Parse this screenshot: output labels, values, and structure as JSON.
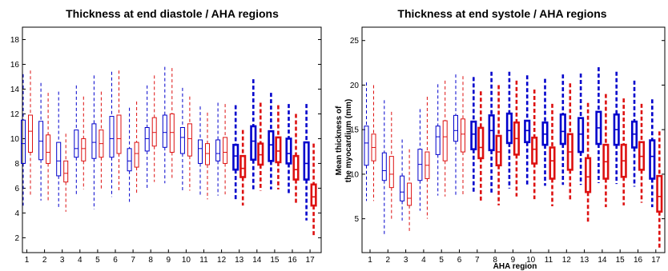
{
  "chart_data": [
    {
      "type": "box",
      "title": "Thickness at end diastole / AHA regions",
      "xlabel": "",
      "ylabel": "",
      "ylim": [
        0.8,
        19
      ],
      "yticks": [
        2,
        4,
        6,
        8,
        10,
        12,
        14,
        16,
        18
      ],
      "categories": [
        "1",
        "2",
        "3",
        "4",
        "5",
        "6",
        "7",
        "8",
        "9",
        "10",
        "11",
        "12",
        "13",
        "14",
        "15",
        "16",
        "17"
      ],
      "series_colors": {
        "a": "#0000cc",
        "b": "#dd1111"
      },
      "highlight_from_category": 13,
      "series": [
        {
          "boxes": [
            {
              "min": 4.6,
              "q1": 8.0,
              "med": 9.6,
              "q3": 11.5,
              "max": 15.2
            },
            {
              "min": 5.0,
              "q1": 8.3,
              "med": 9.8,
              "q3": 11.4,
              "max": 14.5
            },
            {
              "min": 4.3,
              "q1": 7.0,
              "med": 8.2,
              "q3": 9.7,
              "max": 13.8
            },
            {
              "min": 5.5,
              "q1": 8.5,
              "med": 9.2,
              "q3": 10.7,
              "max": 14.3
            },
            {
              "min": 4.3,
              "q1": 8.4,
              "med": 9.7,
              "q3": 11.2,
              "max": 15.1
            },
            {
              "min": 5.3,
              "q1": 8.5,
              "med": 10.0,
              "q3": 11.8,
              "max": 15.4
            },
            {
              "min": 4.9,
              "q1": 7.4,
              "med": 8.2,
              "q3": 9.2,
              "max": 12.5
            },
            {
              "min": 6.0,
              "q1": 9.0,
              "med": 10.0,
              "q3": 10.9,
              "max": 14.3
            },
            {
              "min": 6.4,
              "q1": 9.3,
              "med": 10.5,
              "q3": 11.9,
              "max": 15.8
            },
            {
              "min": 5.8,
              "q1": 8.8,
              "med": 10.1,
              "q3": 10.9,
              "max": 14.1
            },
            {
              "min": 5.3,
              "q1": 8.0,
              "med": 9.2,
              "q3": 9.9,
              "max": 12.6
            },
            {
              "min": 5.4,
              "q1": 8.2,
              "med": 8.8,
              "q3": 9.9,
              "max": 12.9
            },
            {
              "min": 5.0,
              "q1": 7.5,
              "med": 8.6,
              "q3": 9.5,
              "max": 12.7
            },
            {
              "min": 5.8,
              "q1": 8.3,
              "med": 9.8,
              "q3": 11.0,
              "max": 14.8
            },
            {
              "min": 5.9,
              "q1": 8.2,
              "med": 9.5,
              "q3": 10.6,
              "max": 13.7
            },
            {
              "min": 5.6,
              "q1": 8.0,
              "med": 8.8,
              "q3": 10.0,
              "max": 12.8
            },
            {
              "min": 3.4,
              "q1": 6.7,
              "med": 8.0,
              "q3": 9.7,
              "max": 12.8
            }
          ]
        },
        {
          "boxes": [
            {
              "min": 5.3,
              "q1": 8.9,
              "med": 10.6,
              "q3": 11.9,
              "max": 15.5
            },
            {
              "min": 5.0,
              "q1": 8.0,
              "med": 8.9,
              "q3": 10.3,
              "max": 13.7
            },
            {
              "min": 4.1,
              "q1": 6.5,
              "med": 7.2,
              "q3": 8.2,
              "max": 10.4
            },
            {
              "min": 5.9,
              "q1": 8.2,
              "med": 9.2,
              "q3": 10.0,
              "max": 13.4
            },
            {
              "min": 5.8,
              "q1": 8.5,
              "med": 9.6,
              "q3": 10.7,
              "max": 13.8
            },
            {
              "min": 5.8,
              "q1": 8.8,
              "med": 10.0,
              "q3": 11.9,
              "max": 15.5
            },
            {
              "min": 5.5,
              "q1": 7.7,
              "med": 8.8,
              "q3": 9.7,
              "max": 13.0
            },
            {
              "min": 6.5,
              "q1": 9.4,
              "med": 10.5,
              "q3": 11.7,
              "max": 15.1
            },
            {
              "min": 6.8,
              "q1": 8.9,
              "med": 10.5,
              "q3": 12.0,
              "max": 15.7
            },
            {
              "min": 5.8,
              "q1": 8.6,
              "med": 10.0,
              "q3": 11.2,
              "max": 13.4
            },
            {
              "min": 5.1,
              "q1": 7.9,
              "med": 8.8,
              "q3": 9.6,
              "max": 12.1
            },
            {
              "min": 5.5,
              "q1": 8.0,
              "med": 8.9,
              "q3": 10.1,
              "max": 12.8
            },
            {
              "min": 4.6,
              "q1": 6.9,
              "med": 7.6,
              "q3": 8.6,
              "max": 10.7
            },
            {
              "min": 5.8,
              "q1": 7.9,
              "med": 8.7,
              "q3": 9.6,
              "max": 12.9
            },
            {
              "min": 5.9,
              "q1": 8.1,
              "med": 9.0,
              "q3": 10.1,
              "max": 12.7
            },
            {
              "min": 4.7,
              "q1": 6.7,
              "med": 7.5,
              "q3": 8.6,
              "max": 12.0
            },
            {
              "min": 2.1,
              "q1": 4.6,
              "med": 5.3,
              "q3": 6.3,
              "max": 9.6
            }
          ]
        }
      ]
    },
    {
      "type": "box",
      "title": "Thickness at end systole / AHA regions",
      "xlabel": "AHA region",
      "ylabel": "Mean thickness of the myocardium (mm)",
      "ylabel_lines": [
        "Mean thickness of",
        "the myocardium (mm)"
      ],
      "ylim": [
        1.2,
        26.5
      ],
      "yticks": [
        5,
        10,
        15,
        20,
        25
      ],
      "categories": [
        "1",
        "2",
        "3",
        "4",
        "5",
        "6",
        "7",
        "8",
        "9",
        "10",
        "11",
        "12",
        "13",
        "14",
        "15",
        "16",
        "17"
      ],
      "series_colors": {
        "a": "#0000cc",
        "b": "#dd1111"
      },
      "highlight_from_category": 7,
      "series": [
        {
          "boxes": [
            {
              "min": 7.0,
              "q1": 11.0,
              "med": 13.5,
              "q3": 15.4,
              "max": 20.3
            },
            {
              "min": 3.2,
              "q1": 9.3,
              "med": 10.4,
              "q3": 12.4,
              "max": 18.3
            },
            {
              "min": 4.8,
              "q1": 7.0,
              "med": 8.0,
              "q3": 9.8,
              "max": 13.9
            },
            {
              "min": 5.9,
              "q1": 9.3,
              "med": 11.1,
              "q3": 12.8,
              "max": 17.3
            },
            {
              "min": 7.6,
              "q1": 12.2,
              "med": 14.2,
              "q3": 15.4,
              "max": 20.1
            },
            {
              "min": 7.6,
              "q1": 13.7,
              "med": 14.9,
              "q3": 16.6,
              "max": 21.2
            },
            {
              "min": 7.8,
              "q1": 12.8,
              "med": 14.5,
              "q3": 15.9,
              "max": 20.9
            },
            {
              "min": 7.8,
              "q1": 12.7,
              "med": 14.9,
              "q3": 16.6,
              "max": 21.5
            },
            {
              "min": 8.4,
              "q1": 13.5,
              "med": 14.9,
              "q3": 16.8,
              "max": 21.5
            },
            {
              "min": 8.8,
              "q1": 13.6,
              "med": 14.9,
              "q3": 16.0,
              "max": 21.1
            },
            {
              "min": 8.7,
              "q1": 13.3,
              "med": 14.5,
              "q3": 15.8,
              "max": 20.7
            },
            {
              "min": 8.8,
              "q1": 13.4,
              "med": 14.8,
              "q3": 16.7,
              "max": 21.2
            },
            {
              "min": 8.8,
              "q1": 12.5,
              "med": 14.5,
              "q3": 16.3,
              "max": 21.3
            },
            {
              "min": 9.0,
              "q1": 13.4,
              "med": 15.2,
              "q3": 17.0,
              "max": 22.0
            },
            {
              "min": 8.9,
              "q1": 13.3,
              "med": 15.0,
              "q3": 16.7,
              "max": 21.5
            },
            {
              "min": 8.6,
              "q1": 13.0,
              "med": 14.5,
              "q3": 15.9,
              "max": 20.5
            },
            {
              "min": 6.3,
              "q1": 9.5,
              "med": 12.0,
              "q3": 13.8,
              "max": 18.4
            }
          ]
        },
        {
          "boxes": [
            {
              "min": 7.0,
              "q1": 11.5,
              "med": 13.0,
              "q3": 14.5,
              "max": 20.0
            },
            {
              "min": 5.0,
              "q1": 8.5,
              "med": 10.0,
              "q3": 12.0,
              "max": 17.0
            },
            {
              "min": 3.6,
              "q1": 6.5,
              "med": 7.3,
              "q3": 9.0,
              "max": 12.8
            },
            {
              "min": 5.0,
              "q1": 9.5,
              "med": 11.0,
              "q3": 12.5,
              "max": 18.7
            },
            {
              "min": 7.5,
              "q1": 11.5,
              "med": 14.2,
              "q3": 16.0,
              "max": 20.5
            },
            {
              "min": 7.5,
              "q1": 12.5,
              "med": 14.5,
              "q3": 16.2,
              "max": 21.0
            },
            {
              "min": 7.0,
              "q1": 11.8,
              "med": 13.0,
              "q3": 15.2,
              "max": 19.3
            },
            {
              "min": 6.5,
              "q1": 11.0,
              "med": 12.5,
              "q3": 14.3,
              "max": 20.0
            },
            {
              "min": 7.5,
              "q1": 12.2,
              "med": 14.0,
              "q3": 15.8,
              "max": 20.5
            },
            {
              "min": 7.2,
              "q1": 11.2,
              "med": 12.8,
              "q3": 14.1,
              "max": 19.5
            },
            {
              "min": 6.4,
              "q1": 9.5,
              "med": 11.5,
              "q3": 13.0,
              "max": 17.9
            },
            {
              "min": 7.0,
              "q1": 10.5,
              "med": 12.5,
              "q3": 14.5,
              "max": 20.2
            },
            {
              "min": 4.5,
              "q1": 8.0,
              "med": 9.7,
              "q3": 11.8,
              "max": 18.0
            },
            {
              "min": 6.3,
              "q1": 9.5,
              "med": 11.4,
              "q3": 13.3,
              "max": 19.0
            },
            {
              "min": 6.5,
              "q1": 9.7,
              "med": 11.5,
              "q3": 13.3,
              "max": 18.5
            },
            {
              "min": 6.8,
              "q1": 10.5,
              "med": 12.0,
              "q3": 13.6,
              "max": 17.9
            },
            {
              "min": 1.5,
              "q1": 5.8,
              "med": 7.5,
              "q3": 9.8,
              "max": 14.8
            }
          ]
        }
      ]
    }
  ]
}
